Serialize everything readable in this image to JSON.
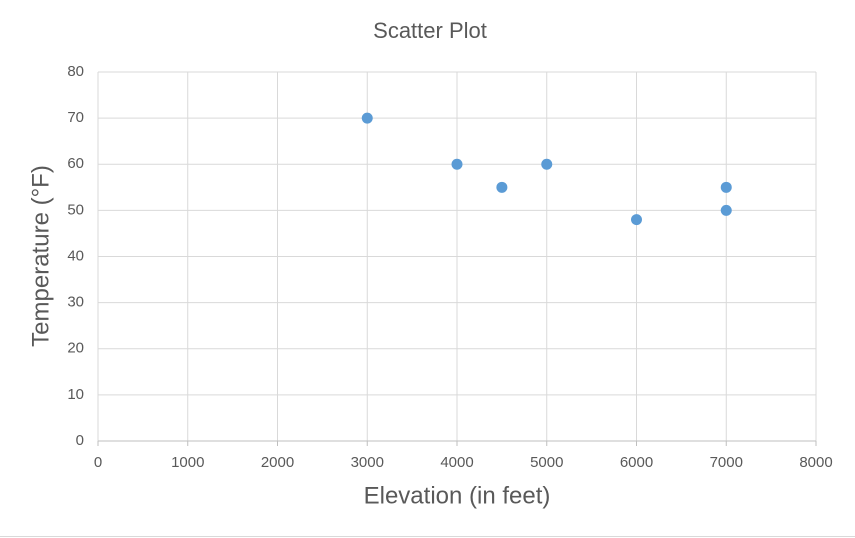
{
  "chart_data": {
    "type": "scatter",
    "title": "Scatter Plot",
    "x_label": "Elevation (in feet)",
    "y_label": "Temperature (°F)",
    "x": [
      3000,
      4000,
      4500,
      5000,
      6000,
      7000,
      7000
    ],
    "values": [
      70,
      60,
      55,
      60,
      48,
      55,
      50
    ],
    "color": "#5b9bd5",
    "xlim": [
      0,
      8000
    ],
    "xticks": [
      0,
      1000,
      2000,
      3000,
      4000,
      5000,
      6000,
      7000,
      8000
    ],
    "ylim": [
      0,
      80
    ],
    "yticks": [
      0,
      10,
      20,
      30,
      40,
      50,
      60,
      70,
      80
    ],
    "grid": true
  }
}
